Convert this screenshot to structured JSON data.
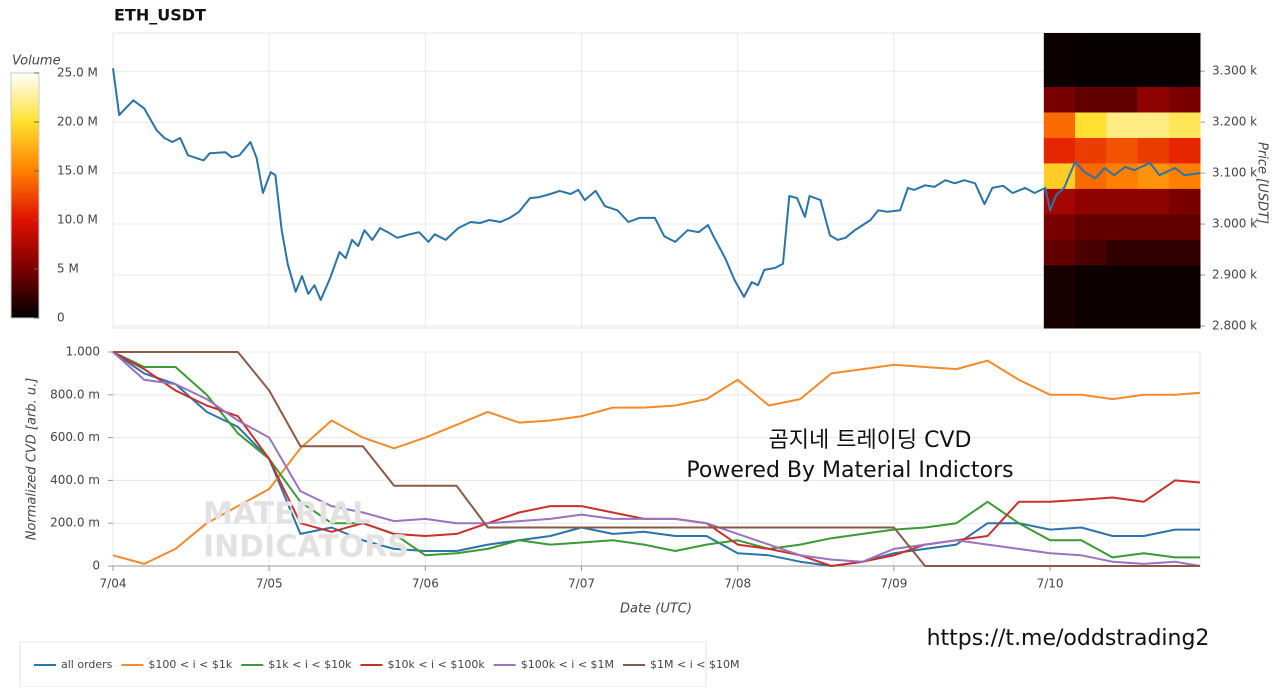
{
  "chart_data": [
    {
      "type": "line",
      "title": "ETH_USDT",
      "y_label": "Price [USDT]",
      "color": "#2a74a8",
      "grid": true,
      "xlim": [
        0,
        6.96
      ],
      "xticks": [
        0,
        1,
        2,
        3,
        4,
        5,
        6
      ],
      "ylim": [
        2796,
        3375
      ],
      "yticks": [
        {
          "value": 2800,
          "label": "2.800 k"
        },
        {
          "value": 2900,
          "label": "2.900 k"
        },
        {
          "value": 3000,
          "label": "3.000 k"
        },
        {
          "value": 3100,
          "label": "3.100 k"
        },
        {
          "value": 3200,
          "label": "3.200 k"
        },
        {
          "value": 3300,
          "label": "3.300 k"
        }
      ],
      "x": [
        0,
        0.04,
        0.13,
        0.2,
        0.28,
        0.33,
        0.38,
        0.43,
        0.48,
        0.58,
        0.62,
        0.72,
        0.76,
        0.81,
        0.88,
        0.92,
        0.96,
        1.01,
        1.04,
        1.08,
        1.12,
        1.17,
        1.21,
        1.25,
        1.29,
        1.33,
        1.39,
        1.45,
        1.49,
        1.53,
        1.57,
        1.61,
        1.66,
        1.71,
        1.76,
        1.82,
        1.9,
        1.96,
        2.02,
        2.06,
        2.13,
        2.21,
        2.29,
        2.35,
        2.41,
        2.48,
        2.54,
        2.6,
        2.67,
        2.73,
        2.8,
        2.86,
        2.93,
        2.98,
        3.02,
        3.09,
        3.15,
        3.23,
        3.3,
        3.37,
        3.47,
        3.53,
        3.6,
        3.68,
        3.75,
        3.81,
        3.85,
        3.92,
        3.98,
        4.04,
        4.09,
        4.13,
        4.17,
        4.24,
        4.29,
        4.33,
        4.38,
        4.43,
        4.46,
        4.53,
        4.59,
        4.64,
        4.69,
        4.75,
        4.8,
        4.85,
        4.9,
        4.96,
        5.04,
        5.09,
        5.13,
        5.2,
        5.26,
        5.33,
        5.39,
        5.45,
        5.52,
        5.58,
        5.63,
        5.7,
        5.76,
        5.84,
        5.9,
        5.97,
        6.0,
        6.04,
        6.09,
        6.16,
        6.22,
        6.29,
        6.35,
        6.41,
        6.48,
        6.54,
        6.64,
        6.7,
        6.8,
        6.86,
        6.96
      ],
      "values": [
        3306,
        3214,
        3243,
        3227,
        3184,
        3169,
        3161,
        3169,
        3135,
        3125,
        3139,
        3141,
        3131,
        3135,
        3161,
        3129,
        3061,
        3102,
        3096,
        2988,
        2920,
        2867,
        2898,
        2863,
        2880,
        2851,
        2894,
        2945,
        2933,
        2969,
        2957,
        2988,
        2969,
        2992,
        2984,
        2973,
        2980,
        2984,
        2965,
        2980,
        2969,
        2992,
        3004,
        3002,
        3008,
        3004,
        3012,
        3024,
        3051,
        3053,
        3059,
        3065,
        3059,
        3067,
        3047,
        3065,
        3035,
        3027,
        3004,
        3012,
        3012,
        2976,
        2965,
        2988,
        2984,
        2998,
        2973,
        2933,
        2890,
        2857,
        2886,
        2880,
        2910,
        2914,
        2922,
        3055,
        3051,
        3014,
        3055,
        3047,
        2978,
        2969,
        2973,
        2988,
        2998,
        3008,
        3027,
        3024,
        3027,
        3071,
        3067,
        3076,
        3073,
        3086,
        3080,
        3086,
        3080,
        3039,
        3071,
        3075,
        3061,
        3071,
        3061,
        3071,
        3027,
        3057,
        3071,
        3122,
        3102,
        3090,
        3110,
        3096,
        3112,
        3106,
        3120,
        3096,
        3110,
        3096,
        3100
      ],
      "heatmap": {
        "x": [
          5.96,
          6.16,
          6.36,
          6.56,
          6.76,
          6.96
        ],
        "y": [
          2796,
          2920,
          2970,
          3020,
          3070,
          3120,
          3170,
          3220,
          3270,
          3375
        ],
        "values": [
          [
            1000000,
            500000,
            500000,
            500000,
            500000
          ],
          [
            4000000,
            3000000,
            2000000,
            2000000,
            2000000
          ],
          [
            5000000,
            4000000,
            4000000,
            4000000,
            4000000
          ],
          [
            7000000,
            6000000,
            6000000,
            6000000,
            5000000
          ],
          [
            19000000,
            14000000,
            15000000,
            16000000,
            15000000
          ],
          [
            11000000,
            12000000,
            13000000,
            12000000,
            11000000
          ],
          [
            14000000,
            20000000,
            22000000,
            22000000,
            21000000
          ],
          [
            5000000,
            4000000,
            4000000,
            6000000,
            5000000
          ],
          [
            500000,
            300000,
            300000,
            300000,
            300000
          ]
        ]
      },
      "colorbar": {
        "title": "Volume",
        "clim": [
          0,
          25000000
        ],
        "colormap": [
          "#000000",
          "#7a0000",
          "#e01000",
          "#ff8000",
          "#ffe030",
          "#ffffff"
        ],
        "ticks": [
          0,
          {
            "value": 5000000,
            "label": "5 M"
          },
          {
            "value": 10000000,
            "label": "10.0 M"
          },
          {
            "value": 15000000,
            "label": "15.0 M"
          },
          {
            "value": 20000000,
            "label": "20.0 M"
          },
          {
            "value": 25000000,
            "label": "25.0 M"
          }
        ]
      }
    },
    {
      "type": "line",
      "x_label": "Date (UTC)",
      "y_label": "Normalized CVD [arb. u.]",
      "grid": true,
      "legend": "bottom-left",
      "xlim": [
        0,
        6.96
      ],
      "xticks": [
        {
          "value": 0,
          "label": "7/04"
        },
        {
          "value": 1,
          "label": "7/05"
        },
        {
          "value": 2,
          "label": "7/06"
        },
        {
          "value": 3,
          "label": "7/07"
        },
        {
          "value": 4,
          "label": "7/08"
        },
        {
          "value": 5,
          "label": "7/09"
        },
        {
          "value": 6,
          "label": "7/10"
        }
      ],
      "ylim": [
        0,
        1
      ],
      "yticks": [
        0,
        {
          "value": 0.2,
          "label": "200.0 m"
        },
        {
          "value": 0.4,
          "label": "400.0 m"
        },
        {
          "value": 0.6,
          "label": "600.0 m"
        },
        {
          "value": 0.8,
          "label": "800.0 m"
        },
        {
          "value": 1,
          "label": "1.000"
        }
      ],
      "x": [
        0,
        0.2,
        0.4,
        0.6,
        0.8,
        1.0,
        1.2,
        1.4,
        1.6,
        1.8,
        2.0,
        2.2,
        2.4,
        2.6,
        2.8,
        3.0,
        3.2,
        3.4,
        3.6,
        3.8,
        4.0,
        4.2,
        4.4,
        4.6,
        4.8,
        5.0,
        5.2,
        5.4,
        5.6,
        5.8,
        6.0,
        6.2,
        6.4,
        6.6,
        6.8,
        6.96
      ],
      "series": [
        {
          "name": "all orders",
          "color": "#2a74a8",
          "values": [
            1.0,
            0.9,
            0.85,
            0.72,
            0.65,
            0.5,
            0.15,
            0.18,
            0.12,
            0.08,
            0.07,
            0.07,
            0.1,
            0.12,
            0.14,
            0.18,
            0.15,
            0.16,
            0.14,
            0.14,
            0.06,
            0.05,
            0.02,
            0.0,
            0.02,
            0.06,
            0.08,
            0.1,
            0.2,
            0.2,
            0.17,
            0.18,
            0.14,
            0.14,
            0.17,
            0.17
          ]
        },
        {
          "name": "$100 < i < $1k",
          "color": "#f28b2a",
          "values": [
            0.05,
            0.01,
            0.08,
            0.2,
            0.28,
            0.36,
            0.55,
            0.68,
            0.6,
            0.55,
            0.6,
            0.66,
            0.72,
            0.67,
            0.68,
            0.7,
            0.74,
            0.74,
            0.75,
            0.78,
            0.87,
            0.75,
            0.78,
            0.9,
            0.92,
            0.94,
            0.93,
            0.92,
            0.96,
            0.87,
            0.8,
            0.8,
            0.78,
            0.8,
            0.8,
            0.81
          ]
        },
        {
          "name": "$1k < i < $10k",
          "color": "#3a9a34",
          "values": [
            1.0,
            0.93,
            0.93,
            0.8,
            0.62,
            0.5,
            0.3,
            0.2,
            0.2,
            0.15,
            0.05,
            0.06,
            0.08,
            0.12,
            0.1,
            0.11,
            0.12,
            0.1,
            0.07,
            0.1,
            0.12,
            0.08,
            0.1,
            0.13,
            0.15,
            0.17,
            0.18,
            0.2,
            0.3,
            0.2,
            0.12,
            0.12,
            0.04,
            0.06,
            0.04,
            0.04
          ]
        },
        {
          "name": "$10k < i < $100k",
          "color": "#c9302c",
          "values": [
            1.0,
            0.92,
            0.82,
            0.75,
            0.7,
            0.5,
            0.2,
            0.16,
            0.2,
            0.15,
            0.14,
            0.15,
            0.2,
            0.25,
            0.28,
            0.28,
            0.25,
            0.22,
            0.22,
            0.2,
            0.1,
            0.08,
            0.05,
            0.0,
            0.02,
            0.05,
            0.1,
            0.12,
            0.14,
            0.3,
            0.3,
            0.31,
            0.32,
            0.3,
            0.4,
            0.39
          ]
        },
        {
          "name": "$100k < i < $1M",
          "color": "#9a72c0",
          "values": [
            1.0,
            0.87,
            0.85,
            0.78,
            0.68,
            0.6,
            0.35,
            0.28,
            0.25,
            0.21,
            0.22,
            0.2,
            0.2,
            0.21,
            0.22,
            0.24,
            0.22,
            0.22,
            0.22,
            0.2,
            0.15,
            0.1,
            0.05,
            0.03,
            0.02,
            0.08,
            0.1,
            0.12,
            0.1,
            0.08,
            0.06,
            0.05,
            0.02,
            0.01,
            0.02,
            0.0
          ]
        },
        {
          "name": "$1M < i < $10M",
          "color": "#8a5a48",
          "values": [
            1,
            1,
            1,
            1,
            1,
            0.82,
            0.56,
            0.56,
            0.56,
            0.375,
            0.375,
            0.375,
            0.18,
            0.18,
            0.18,
            0.18,
            0.18,
            0.18,
            0.18,
            0.18,
            0.18,
            0.18,
            0.18,
            0.18,
            0.18,
            0.18,
            0,
            0,
            0,
            0,
            0,
            0,
            0,
            0,
            0,
            0
          ]
        }
      ],
      "annotations": [
        "곰지네 트레이딩 CVD",
        "Powered By Material Indictors",
        "MATERIAL",
        "INDICATORS",
        "https://t.me/oddstrading2"
      ]
    }
  ]
}
